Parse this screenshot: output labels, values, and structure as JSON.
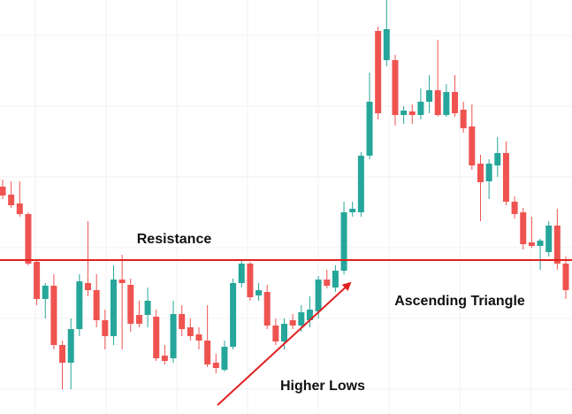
{
  "chart_data": {
    "type": "candlestick",
    "annotations": [
      "Resistance",
      "Ascending Triangle",
      "Higher Lows"
    ],
    "resistance": 174,
    "resistance_color": "#e02020",
    "up_color": "#26a69a",
    "down_color": "#ef5350",
    "ylim": [
      0,
      468
    ],
    "open": [
      257,
      248,
      238,
      226,
      172,
      130,
      145,
      78,
      58,
      96,
      148,
      140,
      106,
      88,
      152,
      146,
      112,
      112,
      110,
      66,
      63,
      113,
      98,
      90,
      83,
      58,
      50,
      76,
      148,
      170,
      134,
      138,
      100,
      82,
      106,
      100,
      106,
      116,
      152,
      143,
      162,
      228,
      228,
      292,
      433,
      400,
      400,
      338,
      342,
      338,
      353,
      366,
      338,
      364,
      344,
      325,
      283,
      263,
      281,
      295,
      240,
      228,
      194,
      190,
      183,
      213,
      170
    ],
    "close": [
      247,
      236,
      226,
      170,
      130,
      145,
      78,
      58,
      96,
      150,
      140,
      106,
      88,
      152,
      148,
      102,
      102,
      128,
      63,
      60,
      113,
      96,
      88,
      83,
      56,
      52,
      76,
      148,
      170,
      132,
      140,
      100,
      82,
      102,
      100,
      115,
      118,
      152,
      145,
      162,
      228,
      232,
      292,
      353,
      340,
      435,
      338,
      343,
      338,
      353,
      366,
      338,
      364,
      340,
      323,
      281,
      262,
      283,
      295,
      240,
      226,
      192,
      190,
      196,
      213,
      170,
      140
    ],
    "high": [
      265,
      263,
      263,
      228,
      174,
      148,
      158,
      83,
      108,
      158,
      218,
      158,
      118,
      168,
      180,
      153,
      128,
      143,
      118,
      78,
      128,
      123,
      108,
      98,
      123,
      68,
      83,
      153,
      173,
      172,
      148,
      146,
      108,
      108,
      113,
      123,
      133,
      156,
      163,
      168,
      240,
      240,
      296,
      386,
      438,
      468,
      406,
      348,
      350,
      368,
      383,
      423,
      373,
      383,
      353,
      350,
      293,
      288,
      313,
      308,
      246,
      233,
      223,
      198,
      218,
      232,
      178
    ],
    "low": [
      243,
      233,
      223,
      168,
      123,
      108,
      73,
      28,
      28,
      88,
      133,
      98,
      73,
      78,
      73,
      93,
      98,
      98,
      60,
      56,
      58,
      88,
      83,
      73,
      53,
      46,
      48,
      73,
      143,
      128,
      128,
      96,
      78,
      73,
      96,
      93,
      98,
      108,
      142,
      138,
      158,
      223,
      223,
      288,
      333,
      393,
      326,
      328,
      328,
      333,
      340,
      336,
      336,
      336,
      318,
      276,
      218,
      243,
      268,
      236,
      221,
      186,
      188,
      163,
      178,
      163,
      130
    ]
  }
}
